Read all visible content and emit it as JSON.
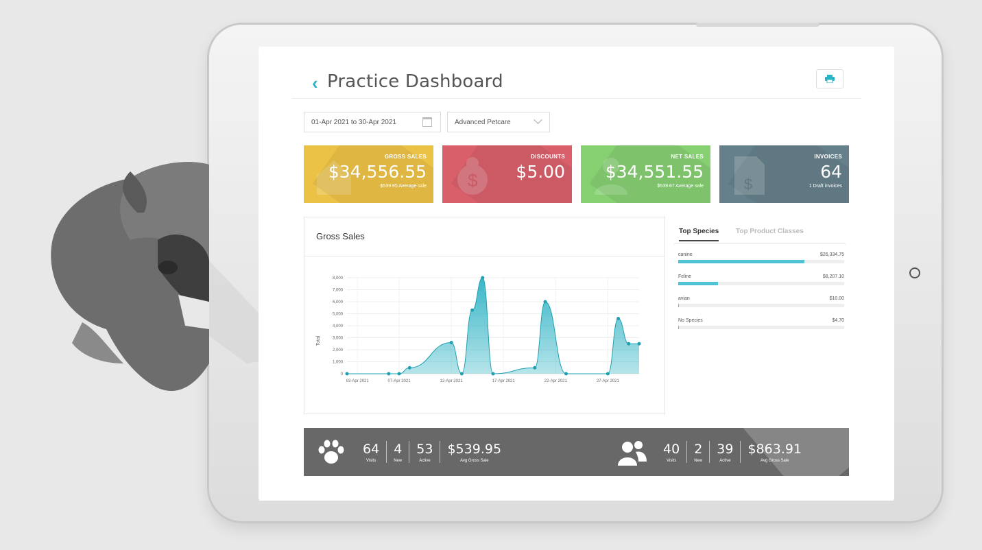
{
  "header": {
    "title": "Practice Dashboard"
  },
  "filters": {
    "date_range": "01-Apr 2021 to 30-Apr 2021",
    "practice": "Advanced Petcare"
  },
  "kpis": [
    {
      "label": "GROSS SALES",
      "value": "$34,556.55",
      "sub": "$539.95 Average sale",
      "color": "#ecc246"
    },
    {
      "label": "DISCOUNTS",
      "value": "$5.00",
      "sub": "",
      "color": "#d9606b"
    },
    {
      "label": "NET SALES",
      "value": "$34,551.55",
      "sub": "$539.87 Average sale",
      "color": "#86d072"
    },
    {
      "label": "INVOICES",
      "value": "64",
      "sub": "1 Draft invoices",
      "color": "#65808a"
    }
  ],
  "chart": {
    "title": "Gross Sales",
    "ylabel": "Total",
    "yticks": [
      "0",
      "1,000",
      "2,000",
      "3,000",
      "4,000",
      "5,000",
      "6,000",
      "7,000",
      "8,000"
    ],
    "xticks": [
      "03-Apr 2021",
      "07-Apr 2021",
      "12-Apr 2021",
      "17-Apr 2021",
      "22-Apr 2021",
      "27-Apr 2021"
    ]
  },
  "chart_data": {
    "type": "area",
    "title": "Gross Sales",
    "xlabel": "",
    "ylabel": "Total",
    "ylim": [
      0,
      8000
    ],
    "x": [
      "02-Apr 2021",
      "06-Apr 2021",
      "07-Apr 2021",
      "08-Apr 2021",
      "12-Apr 2021",
      "13-Apr 2021",
      "14-Apr 2021",
      "15-Apr 2021",
      "16-Apr 2021",
      "20-Apr 2021",
      "21-Apr 2021",
      "23-Apr 2021",
      "27-Apr 2021",
      "28-Apr 2021",
      "29-Apr 2021",
      "30-Apr 2021"
    ],
    "series": [
      {
        "values": [
          0,
          0,
          0,
          500,
          2600,
          0,
          5300,
          8000,
          0,
          500,
          6000,
          0,
          0,
          4600,
          2500,
          2500
        ]
      }
    ],
    "grid": true,
    "color": "#2fb3c4"
  },
  "tabs": {
    "active": "Top Species",
    "inactive": "Top Product Classes"
  },
  "species": [
    {
      "name": "canine",
      "value": "$26,334.75",
      "fraction": 0.76
    },
    {
      "name": "Feline",
      "value": "$8,207.10",
      "fraction": 0.24
    },
    {
      "name": "avian",
      "value": "$10.00",
      "fraction": 0.003
    },
    {
      "name": "No Species",
      "value": "$4.70",
      "fraction": 0.0015
    }
  ],
  "stats": {
    "patients": [
      {
        "value": "64",
        "label": "Visits"
      },
      {
        "value": "4",
        "label": "New"
      },
      {
        "value": "53",
        "label": "Active"
      },
      {
        "value": "$539.95",
        "label": "Avg Gross Sale"
      }
    ],
    "clients": [
      {
        "value": "40",
        "label": "Visits"
      },
      {
        "value": "2",
        "label": "New"
      },
      {
        "value": "39",
        "label": "Active"
      },
      {
        "value": "$863.91",
        "label": "Avg Gross Sale"
      }
    ]
  },
  "icons": {
    "back": "chevron-left-icon",
    "print": "printer-icon",
    "calendar": "calendar-icon",
    "dropdown": "chevron-down-icon",
    "patients": "paw-icon",
    "clients": "people-icon"
  }
}
